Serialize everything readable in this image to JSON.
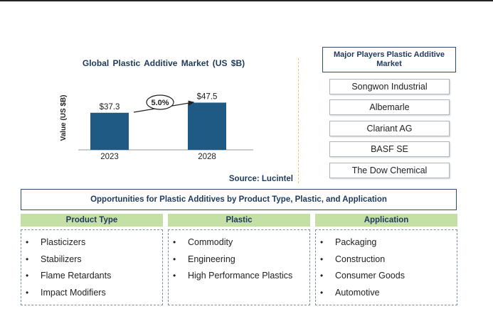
{
  "chart_data": {
    "type": "bar",
    "title": "Global Plastic Additive Market (US $B)",
    "ylabel": "Value (US $B)",
    "categories": [
      "2023",
      "2028"
    ],
    "values": [
      37.3,
      47.5
    ],
    "value_labels": [
      "$37.3",
      "$47.5"
    ],
    "annotation": "5.0%",
    "bar_color": "#1f5a85",
    "ylim": [
      0,
      60
    ],
    "source": "Source: Lucintel"
  },
  "players": {
    "title": "Major Players Plastic Additive Market",
    "items": [
      "Songwon Industrial",
      "Albemarle",
      "Clariant AG",
      "BASF SE",
      "The Dow Chemical"
    ]
  },
  "opportunities": {
    "title": "Opportunities for Plastic Additives by Product Type, Plastic, and Application",
    "columns": [
      {
        "header": "Product Type",
        "items": [
          "Plasticizers",
          "Stabilizers",
          "Flame Retardants",
          "Impact Modifiers"
        ]
      },
      {
        "header": "Plastic",
        "items": [
          "Commodity",
          "Engineering",
          "High Performance Plastics"
        ]
      },
      {
        "header": "Application",
        "items": [
          "Packaging",
          "Construction",
          "Consumer Goods",
          "Automotive"
        ]
      }
    ]
  },
  "colors": {
    "header_green": "#c4e0a4",
    "navy": "#1f3a5c",
    "divider_yellow": "#e8c86a"
  }
}
